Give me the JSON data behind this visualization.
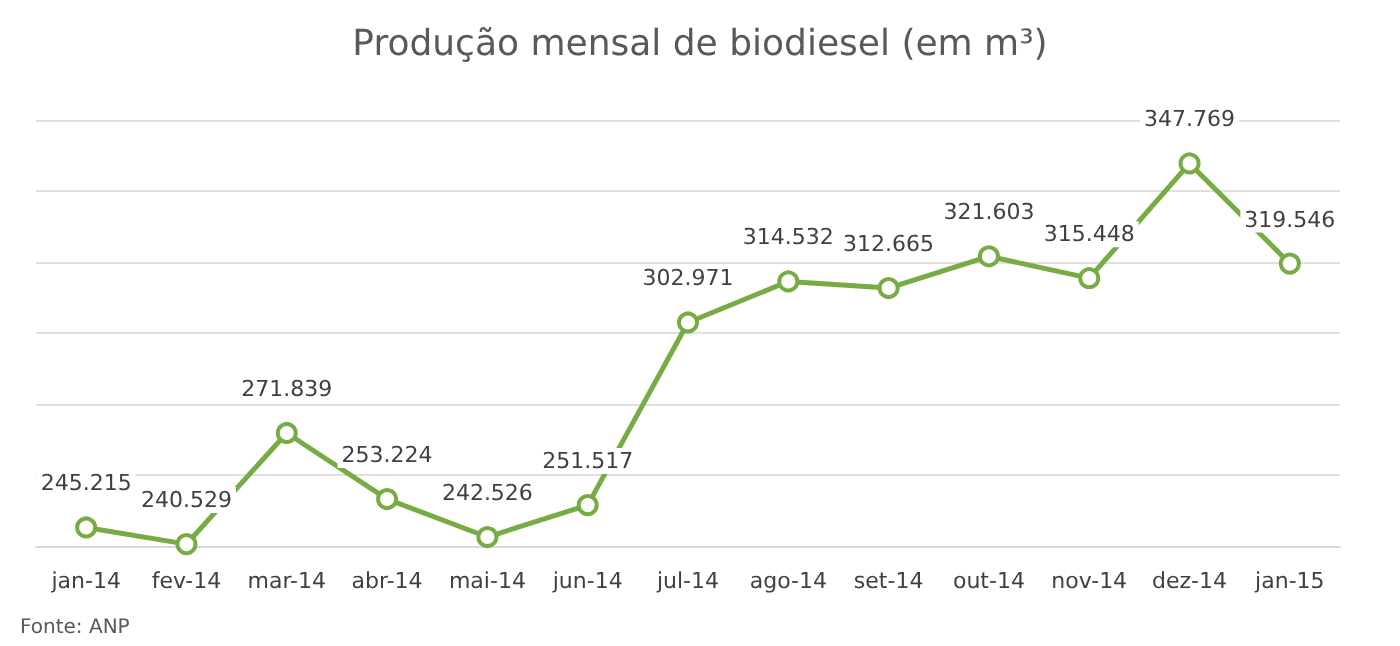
{
  "chart_data": {
    "type": "line",
    "title": "Produção mensal de biodiesel (em m³)",
    "categories": [
      "jan-14",
      "fev-14",
      "mar-14",
      "abr-14",
      "mai-14",
      "jun-14",
      "jul-14",
      "ago-14",
      "set-14",
      "out-14",
      "nov-14",
      "dez-14",
      "jan-15"
    ],
    "series": [
      {
        "color": "#77ab43",
        "values": [
          245.215,
          240.529,
          271.839,
          253.224,
          242.526,
          251.517,
          302.971,
          314.532,
          312.665,
          321.603,
          315.448,
          347.769,
          319.546
        ]
      }
    ],
    "data_labels": true,
    "marker": "circle",
    "line_style": "solid",
    "grid": "y",
    "tick_labels": "x",
    "annotations": [
      "Fonte: ANP"
    ]
  }
}
